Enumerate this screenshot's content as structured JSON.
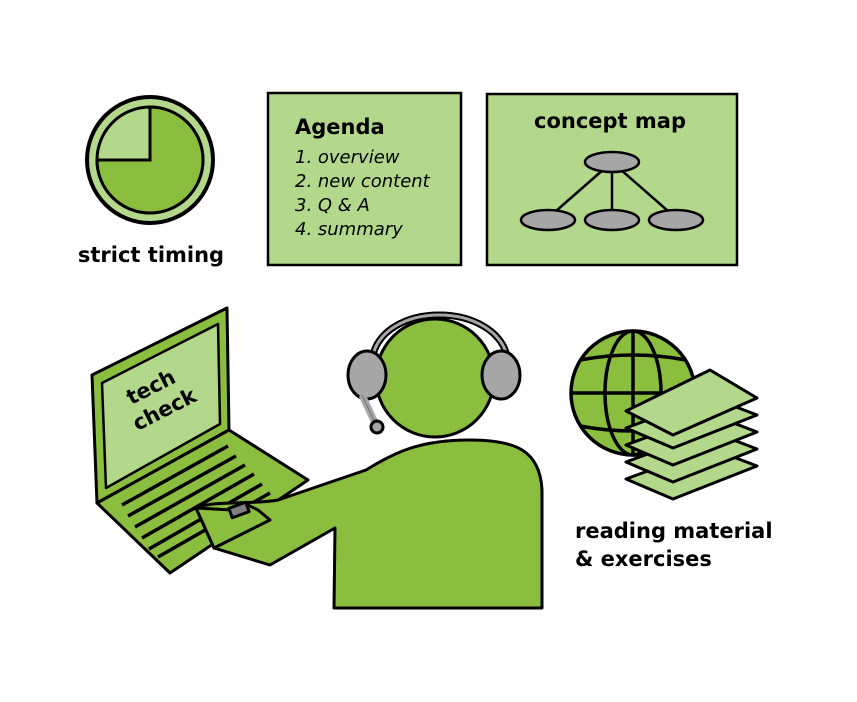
{
  "colors": {
    "light_green": "#b3d88c",
    "mid_green": "#8bbd3f",
    "outline": "#000000",
    "gray": "#a6a6a6"
  },
  "timing": {
    "label": "strict timing"
  },
  "agenda": {
    "title": "Agenda",
    "items": [
      "1. overview",
      "2. new content",
      "3. Q & A",
      "4. summary"
    ]
  },
  "concept_map": {
    "title": "concept map"
  },
  "laptop": {
    "line1": "tech",
    "line2": "check"
  },
  "reading": {
    "line1": "reading material",
    "line2": "& exercises"
  }
}
